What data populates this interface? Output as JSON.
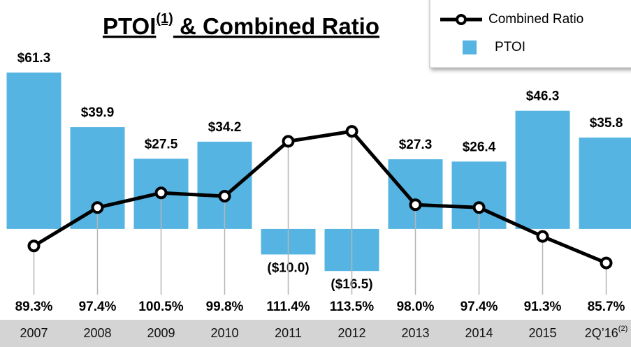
{
  "chart_data": {
    "type": "bar",
    "title_parts": [
      "PTOI",
      "(1)",
      " & Combined Ratio"
    ],
    "categories": [
      "2007",
      "2008",
      "2009",
      "2010",
      "2011",
      "2012",
      "2013",
      "2014",
      "2015",
      "2Q’16"
    ],
    "category_superscripts": [
      null,
      null,
      null,
      null,
      null,
      null,
      null,
      null,
      null,
      "(2)"
    ],
    "series": [
      {
        "name": "PTOI",
        "type": "bar",
        "color": "#56b4e2",
        "values": [
          61.3,
          39.9,
          27.5,
          34.2,
          -10.0,
          -16.5,
          27.3,
          26.4,
          46.3,
          35.8
        ],
        "value_labels": [
          "$61.3",
          "$39.9",
          "$27.5",
          "$34.2",
          "($10.0)",
          "($16.5)",
          "$27.3",
          "$26.4",
          "$46.3",
          "$35.8"
        ]
      },
      {
        "name": "Combined Ratio",
        "type": "line",
        "axis": "y2",
        "color": "#000000",
        "values": [
          89.3,
          97.4,
          100.5,
          99.8,
          111.4,
          113.5,
          98.0,
          97.4,
          91.3,
          85.7
        ],
        "value_labels": [
          "89.3%",
          "97.4%",
          "100.5%",
          "99.8%",
          "111.4%",
          "113.5%",
          "98.0%",
          "97.4%",
          "91.3%",
          "85.7%"
        ]
      }
    ],
    "ylim": [
      -25.2,
      73.3
    ],
    "y2lim": [
      79.3,
      132.4
    ]
  }
}
